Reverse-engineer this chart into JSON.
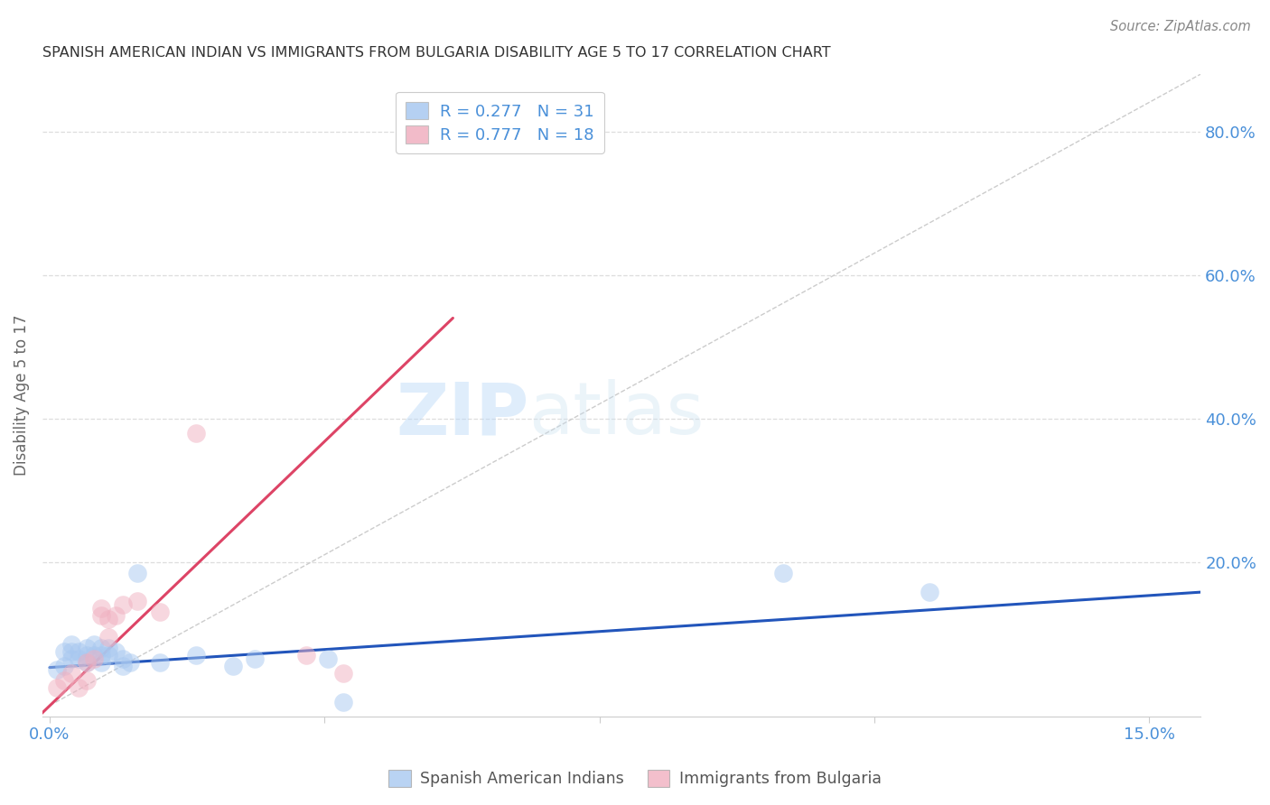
{
  "title": "SPANISH AMERICAN INDIAN VS IMMIGRANTS FROM BULGARIA DISABILITY AGE 5 TO 17 CORRELATION CHART",
  "source": "Source: ZipAtlas.com",
  "ylabel": "Disability Age 5 to 17",
  "right_yticks": [
    "80.0%",
    "60.0%",
    "40.0%",
    "20.0%"
  ],
  "right_ytick_vals": [
    0.8,
    0.6,
    0.4,
    0.2
  ],
  "xmin": -0.001,
  "xmax": 0.157,
  "ymin": -0.015,
  "ymax": 0.88,
  "color_blue": "#a8c8f0",
  "color_pink": "#f0b0c0",
  "color_blue_text": "#4a90d9",
  "color_line_blue": "#2255bb",
  "color_line_pink": "#dd4466",
  "color_diag": "#cccccc",
  "color_grid": "#dddddd",
  "watermark_zip": "ZIP",
  "watermark_atlas": "atlas",
  "blue_scatter_x": [
    0.001,
    0.002,
    0.002,
    0.003,
    0.003,
    0.003,
    0.004,
    0.004,
    0.005,
    0.005,
    0.005,
    0.006,
    0.006,
    0.007,
    0.007,
    0.007,
    0.008,
    0.008,
    0.009,
    0.01,
    0.01,
    0.011,
    0.012,
    0.015,
    0.02,
    0.025,
    0.028,
    0.038,
    0.04,
    0.1,
    0.12
  ],
  "blue_scatter_y": [
    0.05,
    0.055,
    0.075,
    0.065,
    0.075,
    0.085,
    0.065,
    0.075,
    0.06,
    0.07,
    0.08,
    0.07,
    0.085,
    0.07,
    0.08,
    0.06,
    0.07,
    0.08,
    0.075,
    0.065,
    0.055,
    0.06,
    0.185,
    0.06,
    0.07,
    0.055,
    0.065,
    0.065,
    0.005,
    0.185,
    0.158
  ],
  "pink_scatter_x": [
    0.001,
    0.002,
    0.003,
    0.004,
    0.005,
    0.005,
    0.006,
    0.007,
    0.007,
    0.008,
    0.008,
    0.009,
    0.01,
    0.012,
    0.015,
    0.02,
    0.035,
    0.04
  ],
  "pink_scatter_y": [
    0.025,
    0.035,
    0.045,
    0.025,
    0.06,
    0.035,
    0.065,
    0.125,
    0.135,
    0.12,
    0.095,
    0.125,
    0.14,
    0.145,
    0.13,
    0.38,
    0.07,
    0.045
  ],
  "blue_trendline_x": [
    0.0,
    0.157
  ],
  "blue_trendline_y": [
    0.053,
    0.158
  ],
  "pink_trendline_x": [
    -0.002,
    0.055
  ],
  "pink_trendline_y": [
    -0.02,
    0.54
  ],
  "diag_line_x": [
    0.0,
    0.157
  ],
  "diag_line_y": [
    0.0,
    0.88
  ],
  "legend_label_blue": "Spanish American Indians",
  "legend_label_pink": "Immigrants from Bulgaria",
  "xtick_positions": [
    0.0,
    0.0375,
    0.075,
    0.1125,
    0.15
  ],
  "xtick_labels": [
    "0.0%",
    "",
    "",
    "",
    "15.0%"
  ]
}
